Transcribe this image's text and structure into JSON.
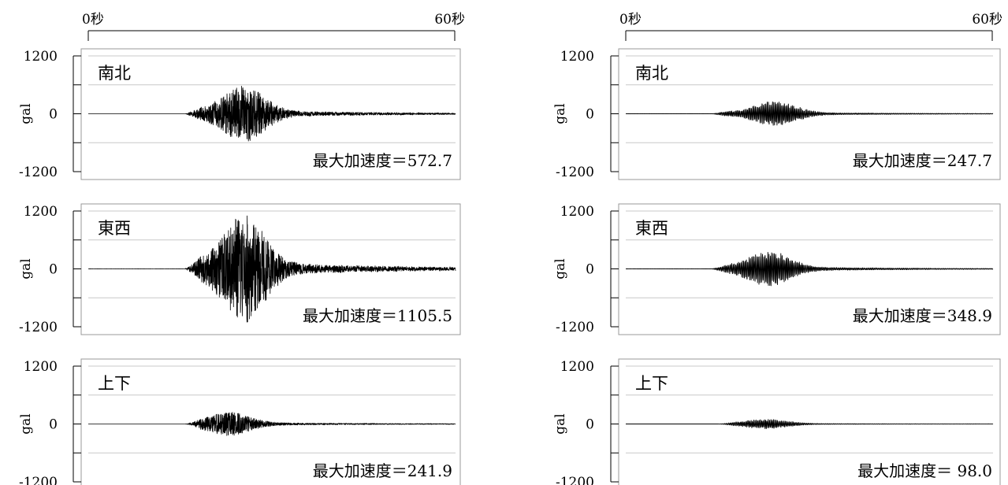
{
  "chart_data": [
    {
      "type": "line",
      "column": "left",
      "component": "南北",
      "ylabel": "gal",
      "ylim": [
        -1200,
        1200
      ],
      "yticks": [
        "1200",
        "0",
        "-1200"
      ],
      "xlim_seconds": [
        0,
        60
      ],
      "time_start_label": "0秒",
      "time_end_label": "60秒",
      "peak_label": "最大加速度＝572.7",
      "peak_gal": 572.7,
      "onset_s": 15.9,
      "strong_center_s": 25.5,
      "grid_lines_gal": [
        -600,
        600
      ]
    },
    {
      "type": "line",
      "column": "left",
      "component": "東西",
      "ylabel": "gal",
      "ylim": [
        -1200,
        1200
      ],
      "yticks": [
        "1200",
        "0",
        "-1200"
      ],
      "xlim_seconds": [
        0,
        60
      ],
      "peak_label": "最大加速度＝1105.5",
      "peak_gal": 1105.5,
      "onset_s": 15.9,
      "strong_center_s": 25.5,
      "grid_lines_gal": [
        -600,
        600
      ]
    },
    {
      "type": "line",
      "column": "left",
      "component": "上下",
      "ylabel": "gal",
      "ylim": [
        -1200,
        1200
      ],
      "yticks": [
        "1200",
        "0",
        "-1200"
      ],
      "xlim_seconds": [
        0,
        60
      ],
      "peak_label": "最大加速度＝241.9",
      "peak_gal": 241.9,
      "onset_s": 15.9,
      "strong_center_s": 23.0,
      "grid_lines_gal": [
        -600,
        600
      ]
    },
    {
      "type": "line",
      "column": "right",
      "component": "南北",
      "ylabel": "gal",
      "ylim": [
        -1200,
        1200
      ],
      "yticks": [
        "1200",
        "0",
        "-1200"
      ],
      "xlim_seconds": [
        0,
        60
      ],
      "time_start_label": "0秒",
      "time_end_label": "60秒",
      "peak_label": "最大加速度＝247.7",
      "peak_gal": 247.7,
      "onset_s": 14.0,
      "strong_center_s": 24.5,
      "grid_lines_gal": [
        -600,
        600
      ]
    },
    {
      "type": "line",
      "column": "right",
      "component": "東西",
      "ylabel": "gal",
      "ylim": [
        -1200,
        1200
      ],
      "yticks": [
        "1200",
        "0",
        "-1200"
      ],
      "xlim_seconds": [
        0,
        60
      ],
      "peak_label": "最大加速度＝348.9",
      "peak_gal": 348.9,
      "onset_s": 14.0,
      "strong_center_s": 23.5,
      "grid_lines_gal": [
        -600,
        600
      ]
    },
    {
      "type": "line",
      "column": "right",
      "component": "上下",
      "ylabel": "gal",
      "ylim": [
        -1200,
        1200
      ],
      "yticks": [
        "1200",
        "0",
        "-1200"
      ],
      "xlim_seconds": [
        0,
        60
      ],
      "peak_label": "最大加速度＝ 98.0",
      "peak_gal": 98.0,
      "onset_s": 15.0,
      "strong_center_s": 23.0,
      "grid_lines_gal": [
        -600,
        600
      ]
    }
  ]
}
